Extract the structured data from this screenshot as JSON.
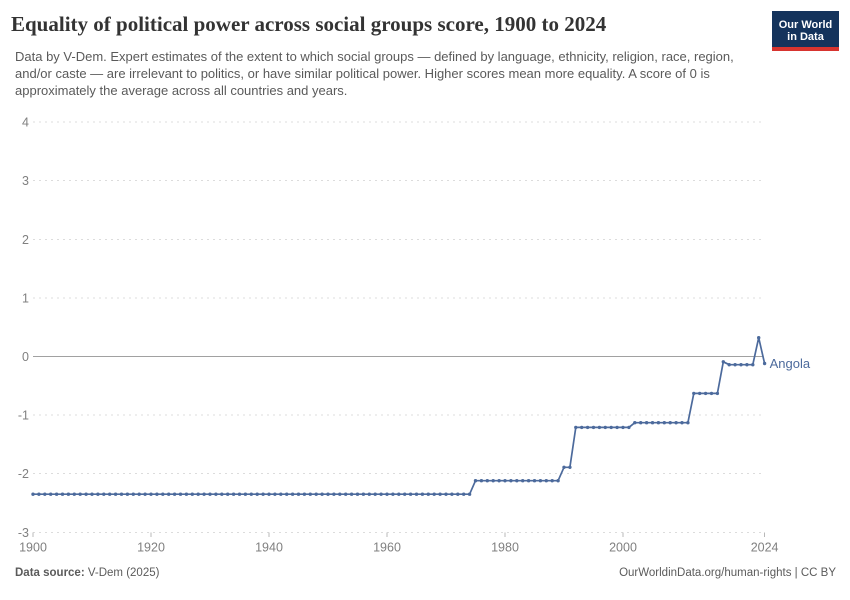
{
  "header": {
    "title": "Equality of political power across social groups score, 1900 to 2024",
    "subtitle": "Data by V-Dem. Expert estimates of the extent to which social groups — defined by language, ethnicity, religion, race, region, and/or caste — are irrelevant to politics, or have similar political power. Higher scores mean more equality. A score of 0 is approximately the average across all countries and years.",
    "logo": {
      "line1": "Our World",
      "line2": "in Data"
    }
  },
  "footer": {
    "datasource_label": "Data source:",
    "datasource_value": " V-Dem (2025)",
    "url": "OurWorldinData.org/human-rights",
    "separator": " | ",
    "license": "CC BY"
  },
  "colors": {
    "line": "#4c6a9c",
    "entity_label": "#4c6a9c",
    "gridline": "#dcdcdc",
    "zero_line": "#a1a1a1",
    "tick": "#b8b8b8",
    "axis_label": "#808080",
    "logo_navy": "#14335c",
    "logo_red": "#d7342f"
  },
  "chart_data": {
    "type": "line",
    "title": "Equality of political power across social groups score, 1900 to 2024",
    "xlabel": "",
    "ylabel": "",
    "xlim": [
      1900,
      2024
    ],
    "ylim": [
      -3,
      4
    ],
    "x_ticks": [
      1900,
      1920,
      1940,
      1960,
      1980,
      2000,
      2024
    ],
    "y_ticks": [
      4,
      3,
      2,
      1,
      0,
      -1,
      -2,
      -3
    ],
    "grid": "dashed horizontal, solid zero line",
    "legend_position": "end-of-line label",
    "markers": "yearly dots",
    "series": [
      {
        "name": "Angola",
        "color": "#4c6a9c",
        "steps": [
          {
            "from": 1900,
            "to": 1974,
            "value": -2.35
          },
          {
            "from": 1975,
            "to": 1989,
            "value": -2.12
          },
          {
            "from": 1990,
            "to": 1991,
            "value": -1.89
          },
          {
            "from": 1992,
            "to": 2001,
            "value": -1.21
          },
          {
            "from": 2002,
            "to": 2011,
            "value": -1.13
          },
          {
            "from": 2012,
            "to": 2016,
            "value": -0.63
          },
          {
            "from": 2017,
            "to": 2017,
            "value": -0.09
          },
          {
            "from": 2018,
            "to": 2022,
            "value": -0.14
          },
          {
            "from": 2023,
            "to": 2023,
            "value": 0.32
          },
          {
            "from": 2024,
            "to": 2024,
            "value": -0.12
          }
        ]
      }
    ]
  }
}
